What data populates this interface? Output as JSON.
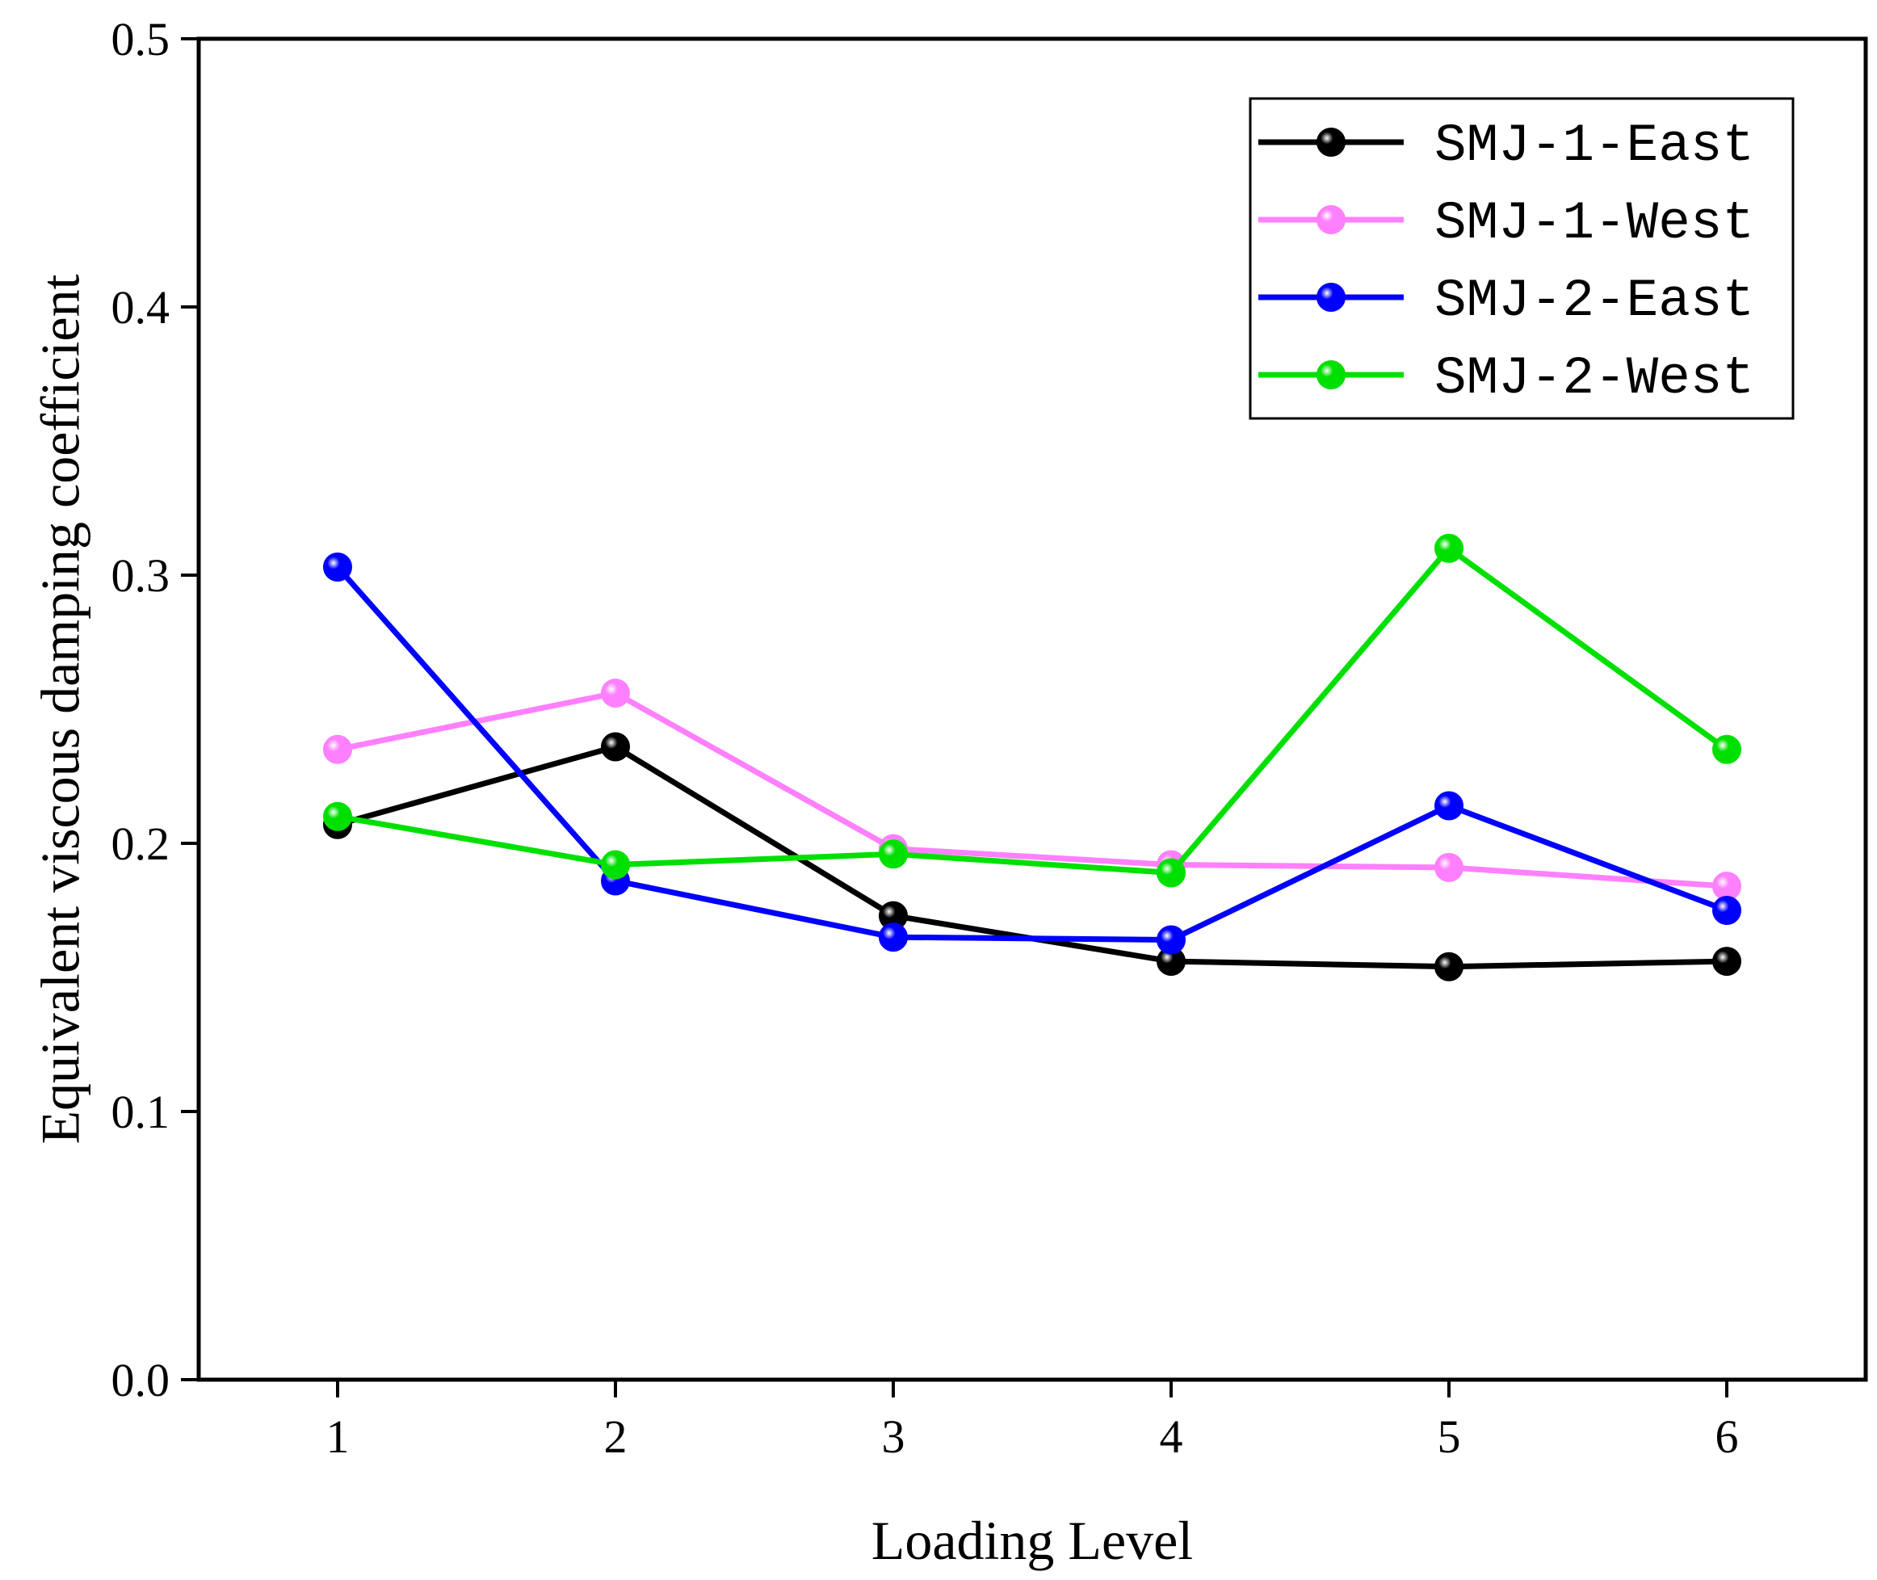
{
  "chart_data": {
    "type": "line",
    "xlabel": "Loading Level",
    "ylabel": "Equivalent viscous damping coefficient",
    "x": [
      1,
      2,
      3,
      4,
      5,
      6
    ],
    "xlim": [
      0.5,
      6.5
    ],
    "ylim": [
      0.0,
      0.5
    ],
    "xticks": [
      "1",
      "2",
      "3",
      "4",
      "5",
      "6"
    ],
    "yticks": [
      "0.0",
      "0.1",
      "0.2",
      "0.3",
      "0.4",
      "0.5"
    ],
    "grid": false,
    "legend_position": "top-right",
    "series": [
      {
        "name": "SMJ-1-East",
        "color": "#000000",
        "values": [
          0.207,
          0.236,
          0.173,
          0.156,
          0.154,
          0.156
        ]
      },
      {
        "name": "SMJ-1-West",
        "color": "#ff80ff",
        "values": [
          0.235,
          0.256,
          0.198,
          0.192,
          0.191,
          0.184
        ]
      },
      {
        "name": "SMJ-2-East",
        "color": "#0000ff",
        "values": [
          0.303,
          0.186,
          0.165,
          0.164,
          0.214,
          0.175
        ]
      },
      {
        "name": "SMJ-2-West",
        "color": "#00e000",
        "values": [
          0.21,
          0.192,
          0.196,
          0.189,
          0.31,
          0.235
        ]
      }
    ]
  }
}
